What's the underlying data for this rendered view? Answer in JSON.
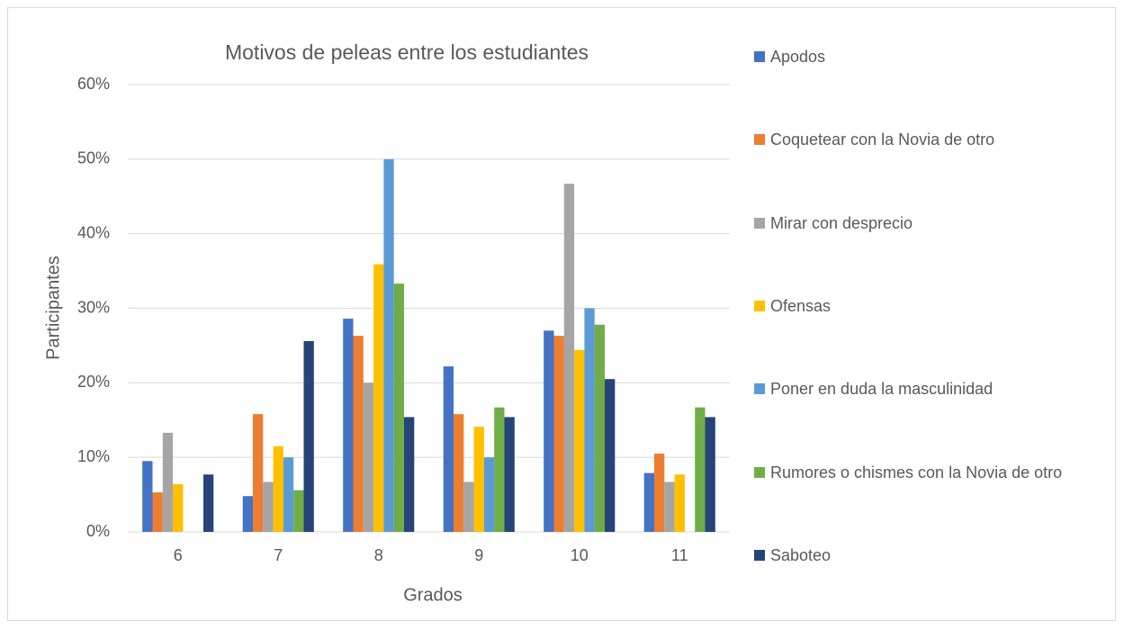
{
  "chart_data": {
    "type": "bar",
    "title": "Motivos de peleas entre los estudiantes",
    "xlabel": "Grados",
    "ylabel": "Participantes",
    "categories": [
      "6",
      "7",
      "8",
      "9",
      "10",
      "11"
    ],
    "series": [
      {
        "name": "Apodos",
        "color": "#4472c4",
        "values": [
          9.5,
          4.8,
          28.6,
          22.2,
          27,
          7.9
        ]
      },
      {
        "name": "Coquetear con la Novia de otro",
        "color": "#ed7d31",
        "values": [
          5.3,
          15.8,
          26.3,
          15.8,
          26.3,
          10.5
        ]
      },
      {
        "name": "Mirar con desprecio",
        "color": "#a5a5a5",
        "values": [
          13.3,
          6.7,
          20,
          6.7,
          46.7,
          6.7
        ]
      },
      {
        "name": "Ofensas",
        "color": "#ffc000",
        "values": [
          6.4,
          11.5,
          35.9,
          14.1,
          24.4,
          7.7
        ]
      },
      {
        "name": "Poner en duda la masculinidad",
        "color": "#5b9bd5",
        "values": [
          0,
          10,
          50,
          10,
          30,
          0
        ]
      },
      {
        "name": "Rumores o chismes con la Novia de otro",
        "color": "#70ad47",
        "values": [
          0,
          5.6,
          33.3,
          16.7,
          27.8,
          16.7
        ]
      },
      {
        "name": "Saboteo",
        "color": "#264478",
        "values": [
          7.7,
          25.6,
          15.4,
          15.4,
          20.5,
          15.4
        ]
      }
    ],
    "ylim": [
      0,
      60
    ],
    "yticks": [
      {
        "value": 0,
        "label": "0%"
      },
      {
        "value": 10,
        "label": "10%"
      },
      {
        "value": 20,
        "label": "20%"
      },
      {
        "value": 30,
        "label": "30%"
      },
      {
        "value": 40,
        "label": "40%"
      },
      {
        "value": 50,
        "label": "50%"
      },
      {
        "value": 60,
        "label": "60%"
      }
    ],
    "grid": true,
    "legend": "right"
  }
}
